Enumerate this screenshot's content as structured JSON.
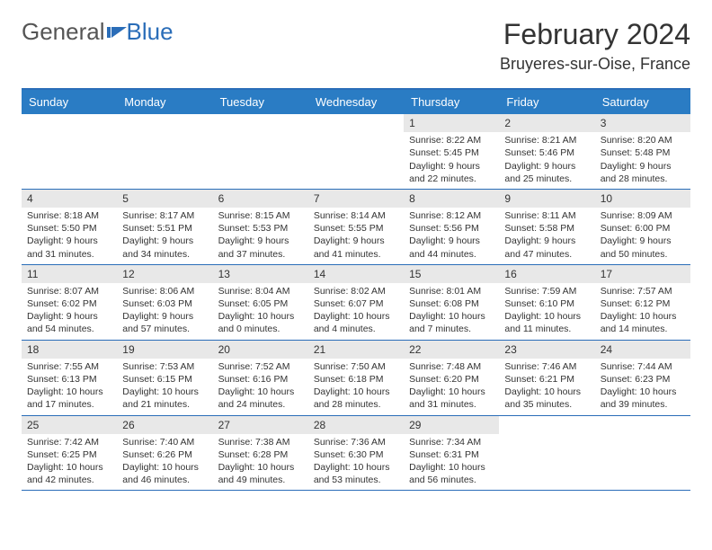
{
  "logo": {
    "text1": "General",
    "text2": "Blue"
  },
  "title": "February 2024",
  "location": "Bruyeres-sur-Oise, France",
  "colors": {
    "header_bg": "#2a7cc4",
    "border": "#2a6db8",
    "daynum_bg": "#e8e8e8"
  },
  "day_names": [
    "Sunday",
    "Monday",
    "Tuesday",
    "Wednesday",
    "Thursday",
    "Friday",
    "Saturday"
  ],
  "weeks": [
    [
      {
        "empty": true
      },
      {
        "empty": true
      },
      {
        "empty": true
      },
      {
        "empty": true
      },
      {
        "n": "1",
        "sunrise": "Sunrise: 8:22 AM",
        "sunset": "Sunset: 5:45 PM",
        "dl1": "Daylight: 9 hours",
        "dl2": "and 22 minutes."
      },
      {
        "n": "2",
        "sunrise": "Sunrise: 8:21 AM",
        "sunset": "Sunset: 5:46 PM",
        "dl1": "Daylight: 9 hours",
        "dl2": "and 25 minutes."
      },
      {
        "n": "3",
        "sunrise": "Sunrise: 8:20 AM",
        "sunset": "Sunset: 5:48 PM",
        "dl1": "Daylight: 9 hours",
        "dl2": "and 28 minutes."
      }
    ],
    [
      {
        "n": "4",
        "sunrise": "Sunrise: 8:18 AM",
        "sunset": "Sunset: 5:50 PM",
        "dl1": "Daylight: 9 hours",
        "dl2": "and 31 minutes."
      },
      {
        "n": "5",
        "sunrise": "Sunrise: 8:17 AM",
        "sunset": "Sunset: 5:51 PM",
        "dl1": "Daylight: 9 hours",
        "dl2": "and 34 minutes."
      },
      {
        "n": "6",
        "sunrise": "Sunrise: 8:15 AM",
        "sunset": "Sunset: 5:53 PM",
        "dl1": "Daylight: 9 hours",
        "dl2": "and 37 minutes."
      },
      {
        "n": "7",
        "sunrise": "Sunrise: 8:14 AM",
        "sunset": "Sunset: 5:55 PM",
        "dl1": "Daylight: 9 hours",
        "dl2": "and 41 minutes."
      },
      {
        "n": "8",
        "sunrise": "Sunrise: 8:12 AM",
        "sunset": "Sunset: 5:56 PM",
        "dl1": "Daylight: 9 hours",
        "dl2": "and 44 minutes."
      },
      {
        "n": "9",
        "sunrise": "Sunrise: 8:11 AM",
        "sunset": "Sunset: 5:58 PM",
        "dl1": "Daylight: 9 hours",
        "dl2": "and 47 minutes."
      },
      {
        "n": "10",
        "sunrise": "Sunrise: 8:09 AM",
        "sunset": "Sunset: 6:00 PM",
        "dl1": "Daylight: 9 hours",
        "dl2": "and 50 minutes."
      }
    ],
    [
      {
        "n": "11",
        "sunrise": "Sunrise: 8:07 AM",
        "sunset": "Sunset: 6:02 PM",
        "dl1": "Daylight: 9 hours",
        "dl2": "and 54 minutes."
      },
      {
        "n": "12",
        "sunrise": "Sunrise: 8:06 AM",
        "sunset": "Sunset: 6:03 PM",
        "dl1": "Daylight: 9 hours",
        "dl2": "and 57 minutes."
      },
      {
        "n": "13",
        "sunrise": "Sunrise: 8:04 AM",
        "sunset": "Sunset: 6:05 PM",
        "dl1": "Daylight: 10 hours",
        "dl2": "and 0 minutes."
      },
      {
        "n": "14",
        "sunrise": "Sunrise: 8:02 AM",
        "sunset": "Sunset: 6:07 PM",
        "dl1": "Daylight: 10 hours",
        "dl2": "and 4 minutes."
      },
      {
        "n": "15",
        "sunrise": "Sunrise: 8:01 AM",
        "sunset": "Sunset: 6:08 PM",
        "dl1": "Daylight: 10 hours",
        "dl2": "and 7 minutes."
      },
      {
        "n": "16",
        "sunrise": "Sunrise: 7:59 AM",
        "sunset": "Sunset: 6:10 PM",
        "dl1": "Daylight: 10 hours",
        "dl2": "and 11 minutes."
      },
      {
        "n": "17",
        "sunrise": "Sunrise: 7:57 AM",
        "sunset": "Sunset: 6:12 PM",
        "dl1": "Daylight: 10 hours",
        "dl2": "and 14 minutes."
      }
    ],
    [
      {
        "n": "18",
        "sunrise": "Sunrise: 7:55 AM",
        "sunset": "Sunset: 6:13 PM",
        "dl1": "Daylight: 10 hours",
        "dl2": "and 17 minutes."
      },
      {
        "n": "19",
        "sunrise": "Sunrise: 7:53 AM",
        "sunset": "Sunset: 6:15 PM",
        "dl1": "Daylight: 10 hours",
        "dl2": "and 21 minutes."
      },
      {
        "n": "20",
        "sunrise": "Sunrise: 7:52 AM",
        "sunset": "Sunset: 6:16 PM",
        "dl1": "Daylight: 10 hours",
        "dl2": "and 24 minutes."
      },
      {
        "n": "21",
        "sunrise": "Sunrise: 7:50 AM",
        "sunset": "Sunset: 6:18 PM",
        "dl1": "Daylight: 10 hours",
        "dl2": "and 28 minutes."
      },
      {
        "n": "22",
        "sunrise": "Sunrise: 7:48 AM",
        "sunset": "Sunset: 6:20 PM",
        "dl1": "Daylight: 10 hours",
        "dl2": "and 31 minutes."
      },
      {
        "n": "23",
        "sunrise": "Sunrise: 7:46 AM",
        "sunset": "Sunset: 6:21 PM",
        "dl1": "Daylight: 10 hours",
        "dl2": "and 35 minutes."
      },
      {
        "n": "24",
        "sunrise": "Sunrise: 7:44 AM",
        "sunset": "Sunset: 6:23 PM",
        "dl1": "Daylight: 10 hours",
        "dl2": "and 39 minutes."
      }
    ],
    [
      {
        "n": "25",
        "sunrise": "Sunrise: 7:42 AM",
        "sunset": "Sunset: 6:25 PM",
        "dl1": "Daylight: 10 hours",
        "dl2": "and 42 minutes."
      },
      {
        "n": "26",
        "sunrise": "Sunrise: 7:40 AM",
        "sunset": "Sunset: 6:26 PM",
        "dl1": "Daylight: 10 hours",
        "dl2": "and 46 minutes."
      },
      {
        "n": "27",
        "sunrise": "Sunrise: 7:38 AM",
        "sunset": "Sunset: 6:28 PM",
        "dl1": "Daylight: 10 hours",
        "dl2": "and 49 minutes."
      },
      {
        "n": "28",
        "sunrise": "Sunrise: 7:36 AM",
        "sunset": "Sunset: 6:30 PM",
        "dl1": "Daylight: 10 hours",
        "dl2": "and 53 minutes."
      },
      {
        "n": "29",
        "sunrise": "Sunrise: 7:34 AM",
        "sunset": "Sunset: 6:31 PM",
        "dl1": "Daylight: 10 hours",
        "dl2": "and 56 minutes."
      },
      {
        "empty": true
      },
      {
        "empty": true
      }
    ]
  ]
}
